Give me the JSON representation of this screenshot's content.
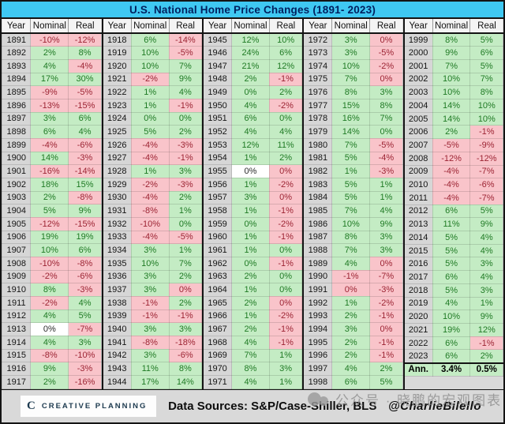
{
  "chart_data": {
    "type": "table",
    "title": "U.S. National Home Price Changes (1891- 2023)",
    "column_headers": [
      "Year",
      "Nominal",
      "Real"
    ],
    "color_legend": {
      "g": "positive (green fill)",
      "r": "negative (pink fill)",
      "w": "zero (white fill)"
    },
    "groups": [
      {
        "rows": [
          [
            "1891",
            "-10%",
            "r",
            "-12%",
            "r"
          ],
          [
            "1892",
            "2%",
            "g",
            "8%",
            "g"
          ],
          [
            "1893",
            "4%",
            "g",
            "-4%",
            "r"
          ],
          [
            "1894",
            "17%",
            "g",
            "30%",
            "g"
          ],
          [
            "1895",
            "-9%",
            "r",
            "-5%",
            "r"
          ],
          [
            "1896",
            "-13%",
            "r",
            "-15%",
            "r"
          ],
          [
            "1897",
            "3%",
            "g",
            "6%",
            "g"
          ],
          [
            "1898",
            "6%",
            "g",
            "4%",
            "g"
          ],
          [
            "1899",
            "-4%",
            "r",
            "-6%",
            "r"
          ],
          [
            "1900",
            "14%",
            "g",
            "-3%",
            "r"
          ],
          [
            "1901",
            "-16%",
            "r",
            "-14%",
            "r"
          ],
          [
            "1902",
            "18%",
            "g",
            "15%",
            "g"
          ],
          [
            "1903",
            "2%",
            "g",
            "-8%",
            "r"
          ],
          [
            "1904",
            "5%",
            "g",
            "9%",
            "g"
          ],
          [
            "1905",
            "-12%",
            "r",
            "-15%",
            "r"
          ],
          [
            "1906",
            "19%",
            "g",
            "19%",
            "g"
          ],
          [
            "1907",
            "10%",
            "g",
            "6%",
            "g"
          ],
          [
            "1908",
            "-10%",
            "r",
            "-8%",
            "r"
          ],
          [
            "1909",
            "-2%",
            "r",
            "-6%",
            "r"
          ],
          [
            "1910",
            "8%",
            "g",
            "-3%",
            "r"
          ],
          [
            "1911",
            "-2%",
            "r",
            "4%",
            "g"
          ],
          [
            "1912",
            "4%",
            "g",
            "5%",
            "g"
          ],
          [
            "1913",
            "0%",
            "w",
            "-7%",
            "r"
          ],
          [
            "1914",
            "4%",
            "g",
            "3%",
            "g"
          ],
          [
            "1915",
            "-8%",
            "r",
            "-10%",
            "r"
          ],
          [
            "1916",
            "9%",
            "g",
            "-3%",
            "r"
          ],
          [
            "1917",
            "2%",
            "g",
            "-16%",
            "r"
          ]
        ]
      },
      {
        "rows": [
          [
            "1918",
            "6%",
            "g",
            "-14%",
            "r"
          ],
          [
            "1919",
            "10%",
            "g",
            "-5%",
            "r"
          ],
          [
            "1920",
            "10%",
            "g",
            "7%",
            "g"
          ],
          [
            "1921",
            "-2%",
            "r",
            "9%",
            "g"
          ],
          [
            "1922",
            "1%",
            "g",
            "4%",
            "g"
          ],
          [
            "1923",
            "1%",
            "g",
            "-1%",
            "r"
          ],
          [
            "1924",
            "0%",
            "g",
            "0%",
            "g"
          ],
          [
            "1925",
            "5%",
            "g",
            "2%",
            "g"
          ],
          [
            "1926",
            "-4%",
            "r",
            "-3%",
            "r"
          ],
          [
            "1927",
            "-4%",
            "r",
            "-1%",
            "r"
          ],
          [
            "1928",
            "1%",
            "g",
            "3%",
            "g"
          ],
          [
            "1929",
            "-2%",
            "r",
            "-3%",
            "r"
          ],
          [
            "1930",
            "-4%",
            "r",
            "2%",
            "g"
          ],
          [
            "1931",
            "-8%",
            "r",
            "1%",
            "g"
          ],
          [
            "1932",
            "-10%",
            "r",
            "0%",
            "g"
          ],
          [
            "1933",
            "-4%",
            "r",
            "-5%",
            "r"
          ],
          [
            "1934",
            "3%",
            "g",
            "1%",
            "g"
          ],
          [
            "1935",
            "10%",
            "g",
            "7%",
            "g"
          ],
          [
            "1936",
            "3%",
            "g",
            "2%",
            "g"
          ],
          [
            "1937",
            "3%",
            "g",
            "0%",
            "r"
          ],
          [
            "1938",
            "-1%",
            "r",
            "2%",
            "g"
          ],
          [
            "1939",
            "-1%",
            "r",
            "-1%",
            "r"
          ],
          [
            "1940",
            "3%",
            "g",
            "3%",
            "g"
          ],
          [
            "1941",
            "-8%",
            "r",
            "-18%",
            "r"
          ],
          [
            "1942",
            "3%",
            "g",
            "-6%",
            "r"
          ],
          [
            "1943",
            "11%",
            "g",
            "8%",
            "g"
          ],
          [
            "1944",
            "17%",
            "g",
            "14%",
            "g"
          ]
        ]
      },
      {
        "rows": [
          [
            "1945",
            "12%",
            "g",
            "10%",
            "g"
          ],
          [
            "1946",
            "24%",
            "g",
            "6%",
            "g"
          ],
          [
            "1947",
            "21%",
            "g",
            "12%",
            "g"
          ],
          [
            "1948",
            "2%",
            "g",
            "-1%",
            "r"
          ],
          [
            "1949",
            "0%",
            "g",
            "2%",
            "g"
          ],
          [
            "1950",
            "4%",
            "g",
            "-2%",
            "r"
          ],
          [
            "1951",
            "6%",
            "g",
            "0%",
            "g"
          ],
          [
            "1952",
            "4%",
            "g",
            "4%",
            "g"
          ],
          [
            "1953",
            "12%",
            "g",
            "11%",
            "g"
          ],
          [
            "1954",
            "1%",
            "g",
            "2%",
            "g"
          ],
          [
            "1955",
            "0%",
            "w",
            "0%",
            "r"
          ],
          [
            "1956",
            "1%",
            "g",
            "-2%",
            "r"
          ],
          [
            "1957",
            "3%",
            "g",
            "0%",
            "r"
          ],
          [
            "1958",
            "1%",
            "g",
            "-1%",
            "r"
          ],
          [
            "1959",
            "0%",
            "g",
            "-2%",
            "r"
          ],
          [
            "1960",
            "1%",
            "g",
            "-1%",
            "r"
          ],
          [
            "1961",
            "1%",
            "g",
            "0%",
            "g"
          ],
          [
            "1962",
            "0%",
            "g",
            "-1%",
            "r"
          ],
          [
            "1963",
            "2%",
            "g",
            "0%",
            "g"
          ],
          [
            "1964",
            "1%",
            "g",
            "0%",
            "g"
          ],
          [
            "1965",
            "2%",
            "g",
            "0%",
            "r"
          ],
          [
            "1966",
            "1%",
            "g",
            "-2%",
            "r"
          ],
          [
            "1967",
            "2%",
            "g",
            "-1%",
            "r"
          ],
          [
            "1968",
            "4%",
            "g",
            "-1%",
            "r"
          ],
          [
            "1969",
            "7%",
            "g",
            "1%",
            "g"
          ],
          [
            "1970",
            "8%",
            "g",
            "3%",
            "g"
          ],
          [
            "1971",
            "4%",
            "g",
            "1%",
            "g"
          ]
        ]
      },
      {
        "rows": [
          [
            "1972",
            "3%",
            "g",
            "0%",
            "r"
          ],
          [
            "1973",
            "3%",
            "g",
            "-5%",
            "r"
          ],
          [
            "1974",
            "10%",
            "g",
            "-2%",
            "r"
          ],
          [
            "1975",
            "7%",
            "g",
            "0%",
            "r"
          ],
          [
            "1976",
            "8%",
            "g",
            "3%",
            "g"
          ],
          [
            "1977",
            "15%",
            "g",
            "8%",
            "g"
          ],
          [
            "1978",
            "16%",
            "g",
            "7%",
            "g"
          ],
          [
            "1979",
            "14%",
            "g",
            "0%",
            "g"
          ],
          [
            "1980",
            "7%",
            "g",
            "-5%",
            "r"
          ],
          [
            "1981",
            "5%",
            "g",
            "-4%",
            "r"
          ],
          [
            "1982",
            "1%",
            "g",
            "-3%",
            "r"
          ],
          [
            "1983",
            "5%",
            "g",
            "1%",
            "g"
          ],
          [
            "1984",
            "5%",
            "g",
            "1%",
            "g"
          ],
          [
            "1985",
            "7%",
            "g",
            "4%",
            "g"
          ],
          [
            "1986",
            "10%",
            "g",
            "9%",
            "g"
          ],
          [
            "1987",
            "8%",
            "g",
            "3%",
            "g"
          ],
          [
            "1988",
            "7%",
            "g",
            "3%",
            "g"
          ],
          [
            "1989",
            "4%",
            "g",
            "0%",
            "r"
          ],
          [
            "1990",
            "-1%",
            "r",
            "-7%",
            "r"
          ],
          [
            "1991",
            "0%",
            "r",
            "-3%",
            "r"
          ],
          [
            "1992",
            "1%",
            "g",
            "-2%",
            "r"
          ],
          [
            "1993",
            "2%",
            "g",
            "-1%",
            "r"
          ],
          [
            "1994",
            "3%",
            "g",
            "0%",
            "r"
          ],
          [
            "1995",
            "2%",
            "g",
            "-1%",
            "r"
          ],
          [
            "1996",
            "2%",
            "g",
            "-1%",
            "r"
          ],
          [
            "1997",
            "4%",
            "g",
            "2%",
            "g"
          ],
          [
            "1998",
            "6%",
            "g",
            "5%",
            "g"
          ]
        ]
      },
      {
        "rows": [
          [
            "1999",
            "8%",
            "g",
            "5%",
            "g"
          ],
          [
            "2000",
            "9%",
            "g",
            "6%",
            "g"
          ],
          [
            "2001",
            "7%",
            "g",
            "5%",
            "g"
          ],
          [
            "2002",
            "10%",
            "g",
            "7%",
            "g"
          ],
          [
            "2003",
            "10%",
            "g",
            "8%",
            "g"
          ],
          [
            "2004",
            "14%",
            "g",
            "10%",
            "g"
          ],
          [
            "2005",
            "14%",
            "g",
            "10%",
            "g"
          ],
          [
            "2006",
            "2%",
            "g",
            "-1%",
            "r"
          ],
          [
            "2007",
            "-5%",
            "r",
            "-9%",
            "r"
          ],
          [
            "2008",
            "-12%",
            "r",
            "-12%",
            "r"
          ],
          [
            "2009",
            "-4%",
            "r",
            "-7%",
            "r"
          ],
          [
            "2010",
            "-4%",
            "r",
            "-6%",
            "r"
          ],
          [
            "2011",
            "-4%",
            "r",
            "-7%",
            "r"
          ],
          [
            "2012",
            "6%",
            "g",
            "5%",
            "g"
          ],
          [
            "2013",
            "11%",
            "g",
            "9%",
            "g"
          ],
          [
            "2014",
            "5%",
            "g",
            "4%",
            "g"
          ],
          [
            "2015",
            "5%",
            "g",
            "4%",
            "g"
          ],
          [
            "2016",
            "5%",
            "g",
            "3%",
            "g"
          ],
          [
            "2017",
            "6%",
            "g",
            "4%",
            "g"
          ],
          [
            "2018",
            "5%",
            "g",
            "3%",
            "g"
          ],
          [
            "2019",
            "4%",
            "g",
            "1%",
            "g"
          ],
          [
            "2020",
            "10%",
            "g",
            "9%",
            "g"
          ],
          [
            "2021",
            "19%",
            "g",
            "12%",
            "g"
          ],
          [
            "2022",
            "6%",
            "g",
            "-1%",
            "r"
          ],
          [
            "2023",
            "6%",
            "g",
            "2%",
            "g"
          ]
        ]
      }
    ],
    "annualized": {
      "label": "Ann.",
      "nominal": "3.4%",
      "real": "0.5%"
    }
  },
  "footer": {
    "brand": "CREATIVE PLANNING",
    "source": "Data Sources: S&P/Case-Shiller, BLS",
    "handle": "@CharlieBilello",
    "watermark": "公众号 · 晓鹏的宏观图表"
  },
  "colors": {
    "title_bg": "#3fc8f2",
    "title_text": "#00205f",
    "positive_bg": "#c4ecc4",
    "positive_text": "#1f7a24",
    "negative_bg": "#f9c4ca",
    "negative_text": "#9c2433",
    "zero_bg": "#ffffff",
    "year_col_bg": "#d6d6d6",
    "footer_bg": "#d9d9d9"
  }
}
